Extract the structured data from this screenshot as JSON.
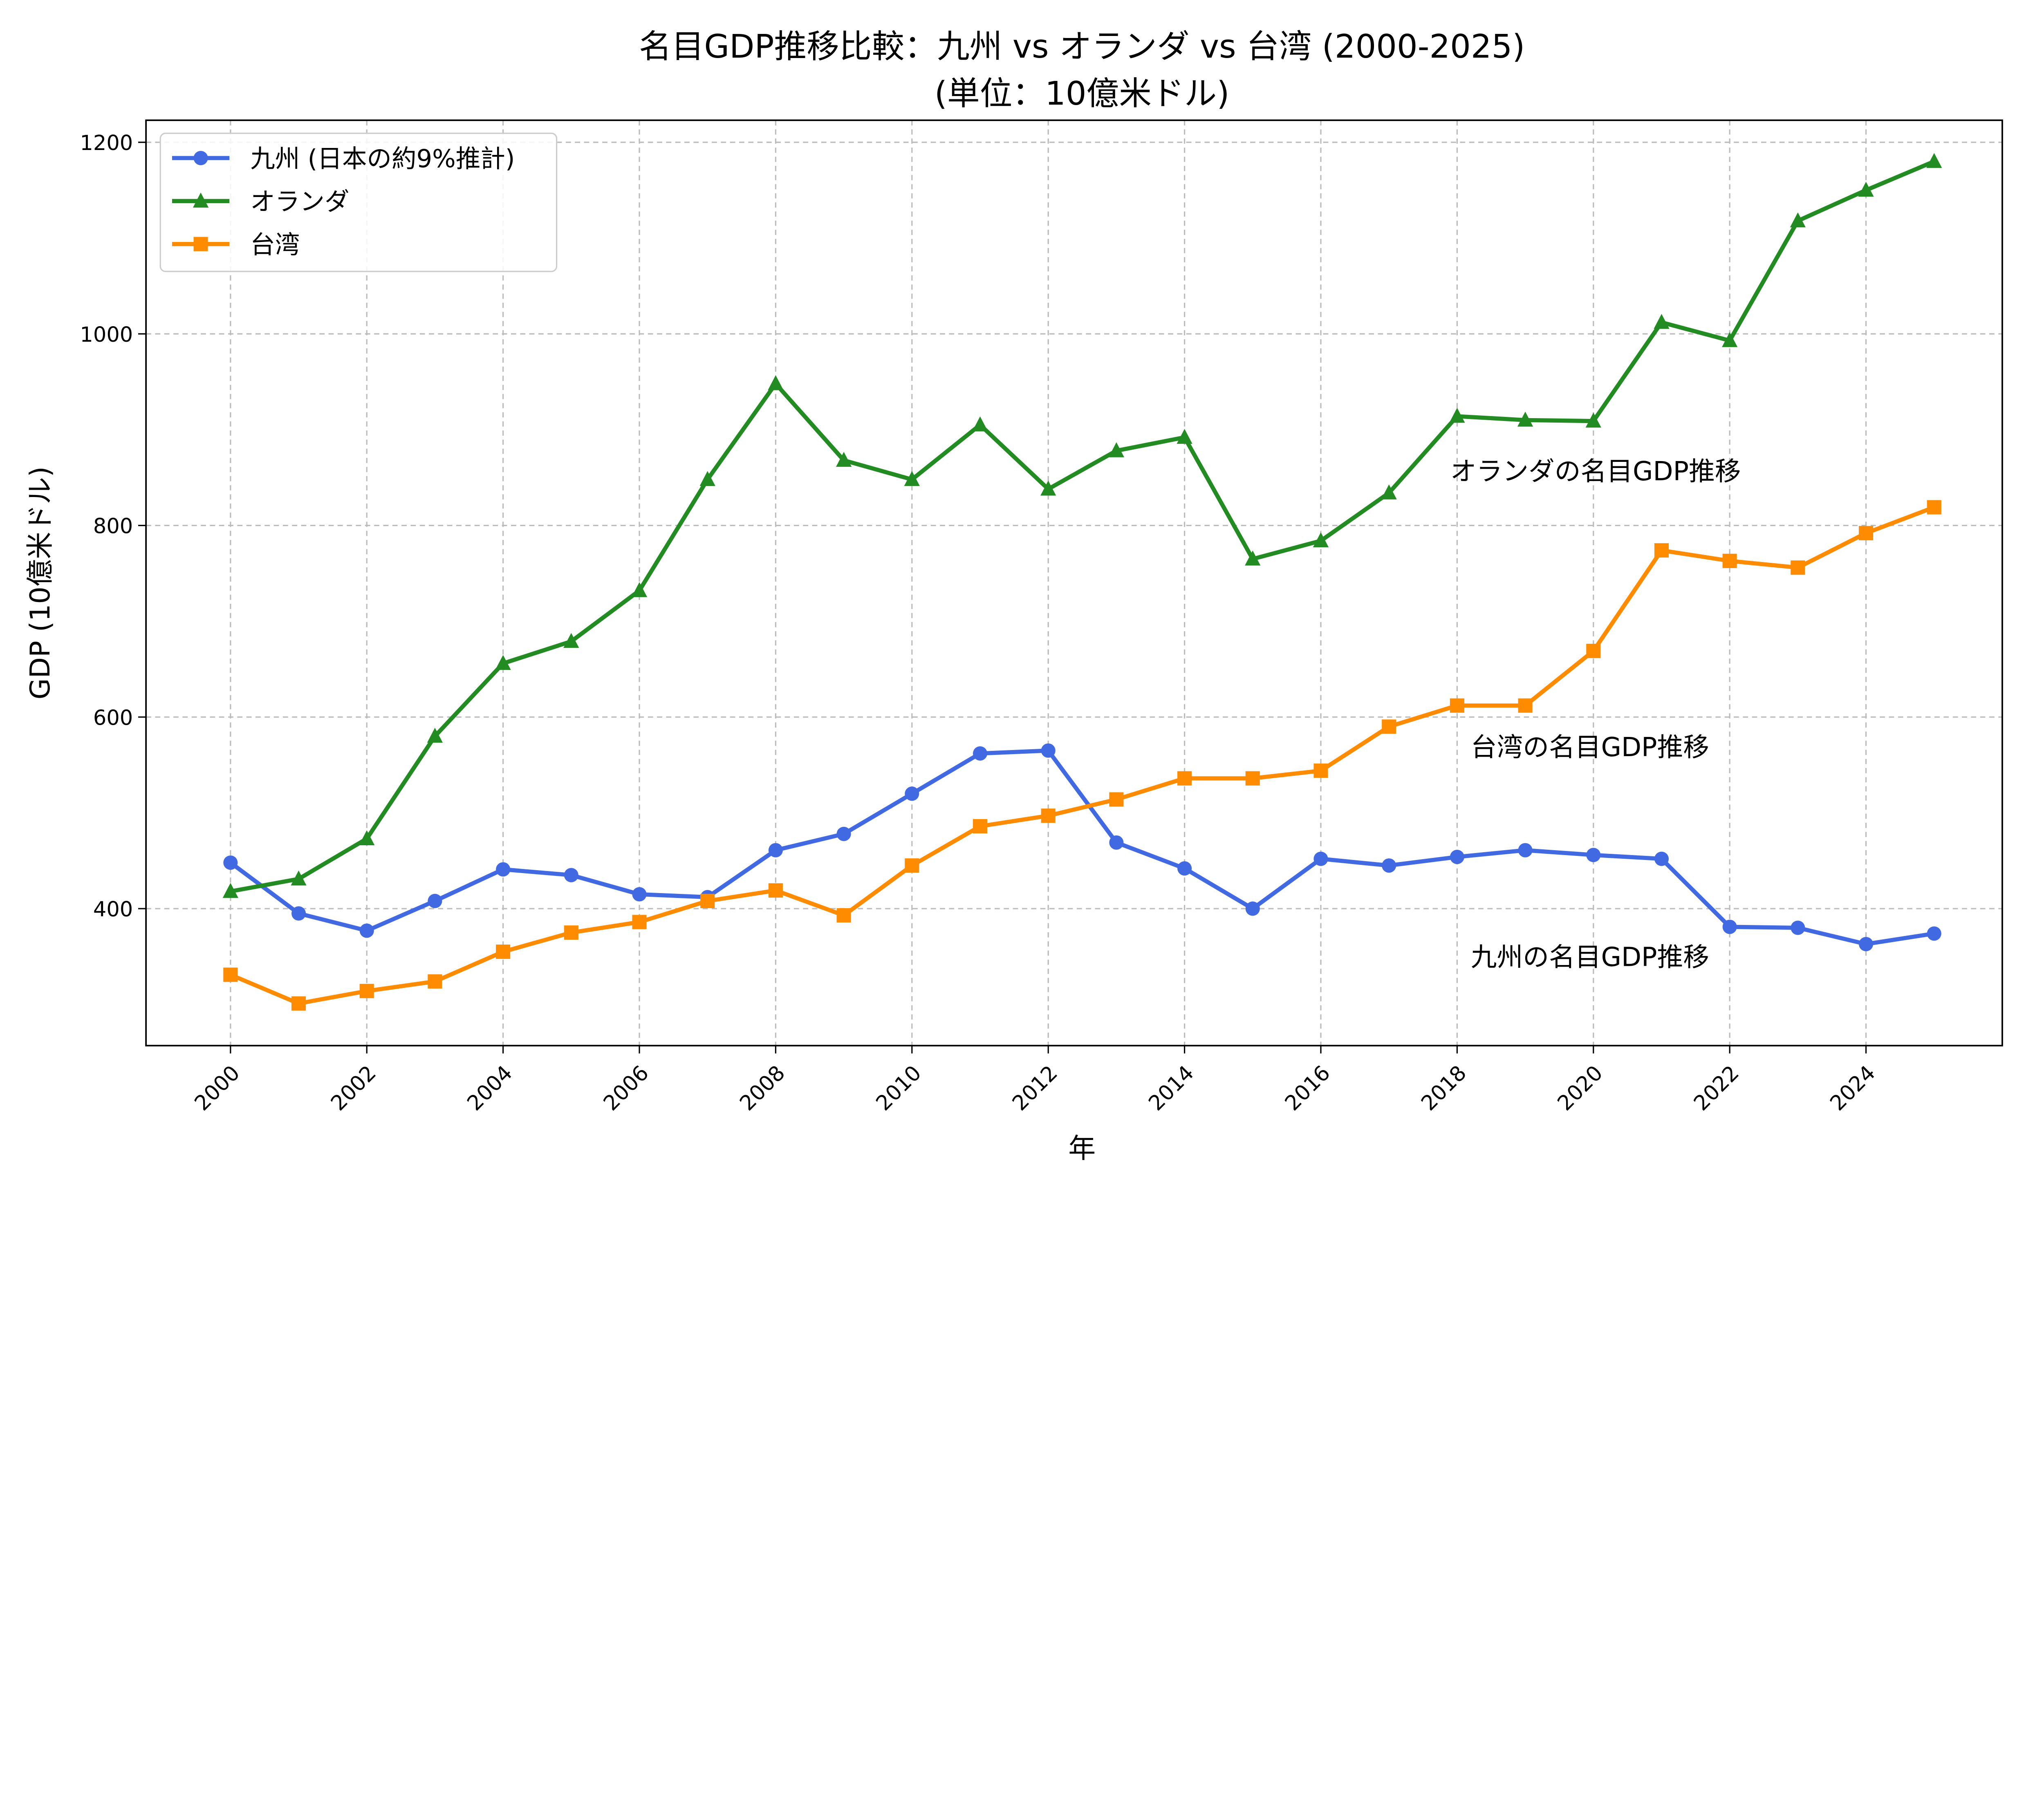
{
  "chart_data": {
    "type": "line",
    "title": "名目GDP推移比較：九州 vs オランダ vs 台湾 (2000-2025)",
    "subtitle": "(単位：10億米ドル)",
    "xlabel": "年",
    "ylabel": "GDP (10億米ドル)",
    "xlim": [
      1998.76,
      2026.0
    ],
    "ylim": [
      257,
      1223
    ],
    "xticks": [
      2000,
      2002,
      2004,
      2006,
      2008,
      2010,
      2012,
      2014,
      2016,
      2018,
      2020,
      2022,
      2024
    ],
    "yticks": [
      400,
      600,
      800,
      1000,
      1200
    ],
    "grid": true,
    "legend_placement": "upper-left",
    "x": [
      2000,
      2001,
      2002,
      2003,
      2004,
      2005,
      2006,
      2007,
      2008,
      2009,
      2010,
      2011,
      2012,
      2013,
      2014,
      2015,
      2016,
      2017,
      2018,
      2019,
      2020,
      2021,
      2022,
      2023,
      2024,
      2025
    ],
    "series": [
      {
        "name": "九州 (日本の約9%推計)",
        "color": "#4169e1",
        "marker": "circle",
        "values": [
          448,
          395,
          377,
          408,
          441,
          435,
          415,
          412,
          461,
          478,
          520,
          562,
          565,
          469,
          442,
          400,
          452,
          445,
          454,
          461,
          456,
          452,
          381,
          380,
          363,
          374
        ]
      },
      {
        "name": "オランダ",
        "color": "#228b22",
        "marker": "triangle",
        "values": [
          418,
          431,
          473,
          580,
          656,
          679,
          732,
          848,
          948,
          868,
          848,
          905,
          838,
          878,
          892,
          765,
          784,
          834,
          914,
          910,
          909,
          1012,
          993,
          1118,
          1150,
          1180
        ]
      },
      {
        "name": "台湾",
        "color": "#ff8c00",
        "marker": "square",
        "values": [
          331,
          301,
          314,
          324,
          355,
          375,
          386,
          408,
          419,
          393,
          445,
          486,
          497,
          514,
          536,
          536,
          544,
          590,
          612,
          612,
          669,
          774,
          763,
          756,
          792,
          819
        ]
      }
    ],
    "annotations": [
      {
        "text": "オランダの名目GDP推移",
        "x": 2017.9,
        "y": 858
      },
      {
        "text": "台湾の名目GDP推移",
        "x": 2018.2,
        "y": 570
      },
      {
        "text": "九州の名目GDP推移",
        "x": 2018.2,
        "y": 351
      }
    ]
  }
}
